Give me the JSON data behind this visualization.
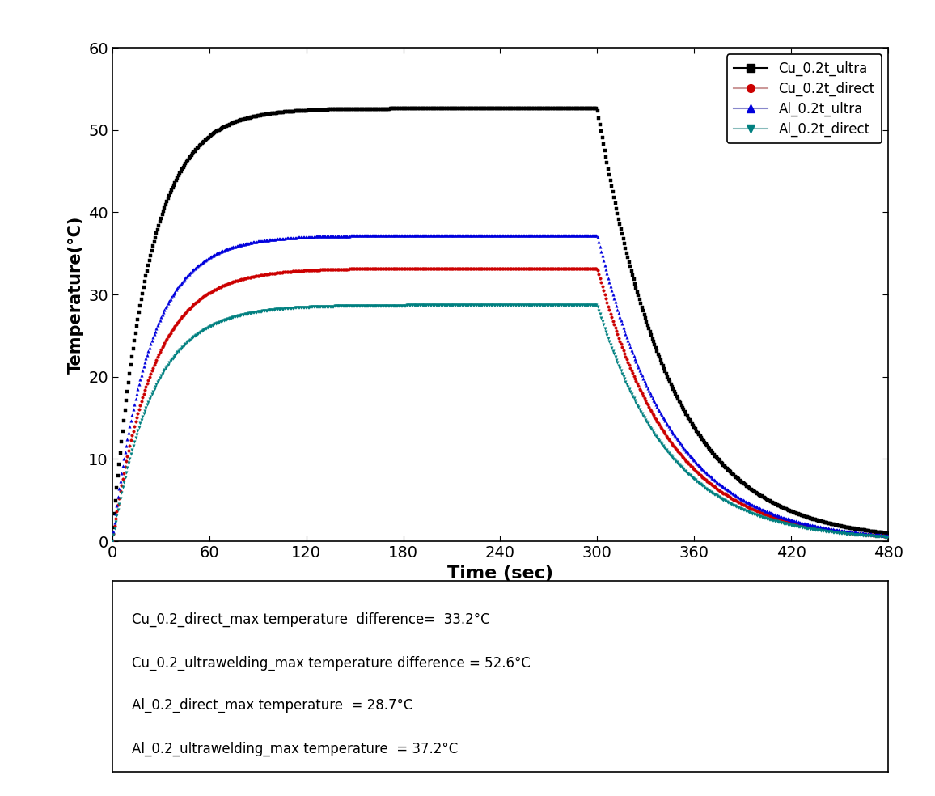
{
  "xlabel": "Time (sec)",
  "ylabel": "Temperature(°C)",
  "xlim": [
    0,
    480
  ],
  "ylim": [
    0,
    60
  ],
  "xticks": [
    0,
    60,
    120,
    180,
    240,
    300,
    360,
    420,
    480
  ],
  "yticks": [
    0,
    10,
    20,
    30,
    40,
    50,
    60
  ],
  "series": [
    {
      "label": "Cu_0.2t_ultra",
      "linecolor": "#000000",
      "marker": "s",
      "T_max": 52.6,
      "t_heat": 300,
      "tau_rise": 22,
      "tau_fall": 45,
      "legend_linecolor": "#000000",
      "legend_linestyle": "-"
    },
    {
      "label": "Cu_0.2t_direct",
      "linecolor": "#cc0000",
      "marker": "o",
      "T_max": 33.2,
      "t_heat": 300,
      "tau_rise": 25,
      "tau_fall": 45,
      "legend_linecolor": "#cc9999",
      "legend_linestyle": "-"
    },
    {
      "label": "Al_0.2t_ultra",
      "linecolor": "#0000dd",
      "marker": "^",
      "T_max": 37.2,
      "t_heat": 300,
      "tau_rise": 23,
      "tau_fall": 45,
      "legend_linecolor": "#8888cc",
      "legend_linestyle": "-"
    },
    {
      "label": "Al_0.2t_direct",
      "linecolor": "#008080",
      "marker": "v",
      "T_max": 28.7,
      "t_heat": 300,
      "tau_rise": 25,
      "tau_fall": 45,
      "legend_linecolor": "#88bbbb",
      "legend_linestyle": "-"
    }
  ],
  "annotation_lines": [
    "Cu_0.2_direct_max temperature  difference=  33.2°C",
    "Cu_0.2_ultrawelding_max temperature difference = 52.6°C",
    "Al_0.2_direct_max temperature  = 28.7°C",
    "Al_0.2_ultrawelding_max temperature  = 37.2°C"
  ],
  "fig_background": "#ffffff"
}
